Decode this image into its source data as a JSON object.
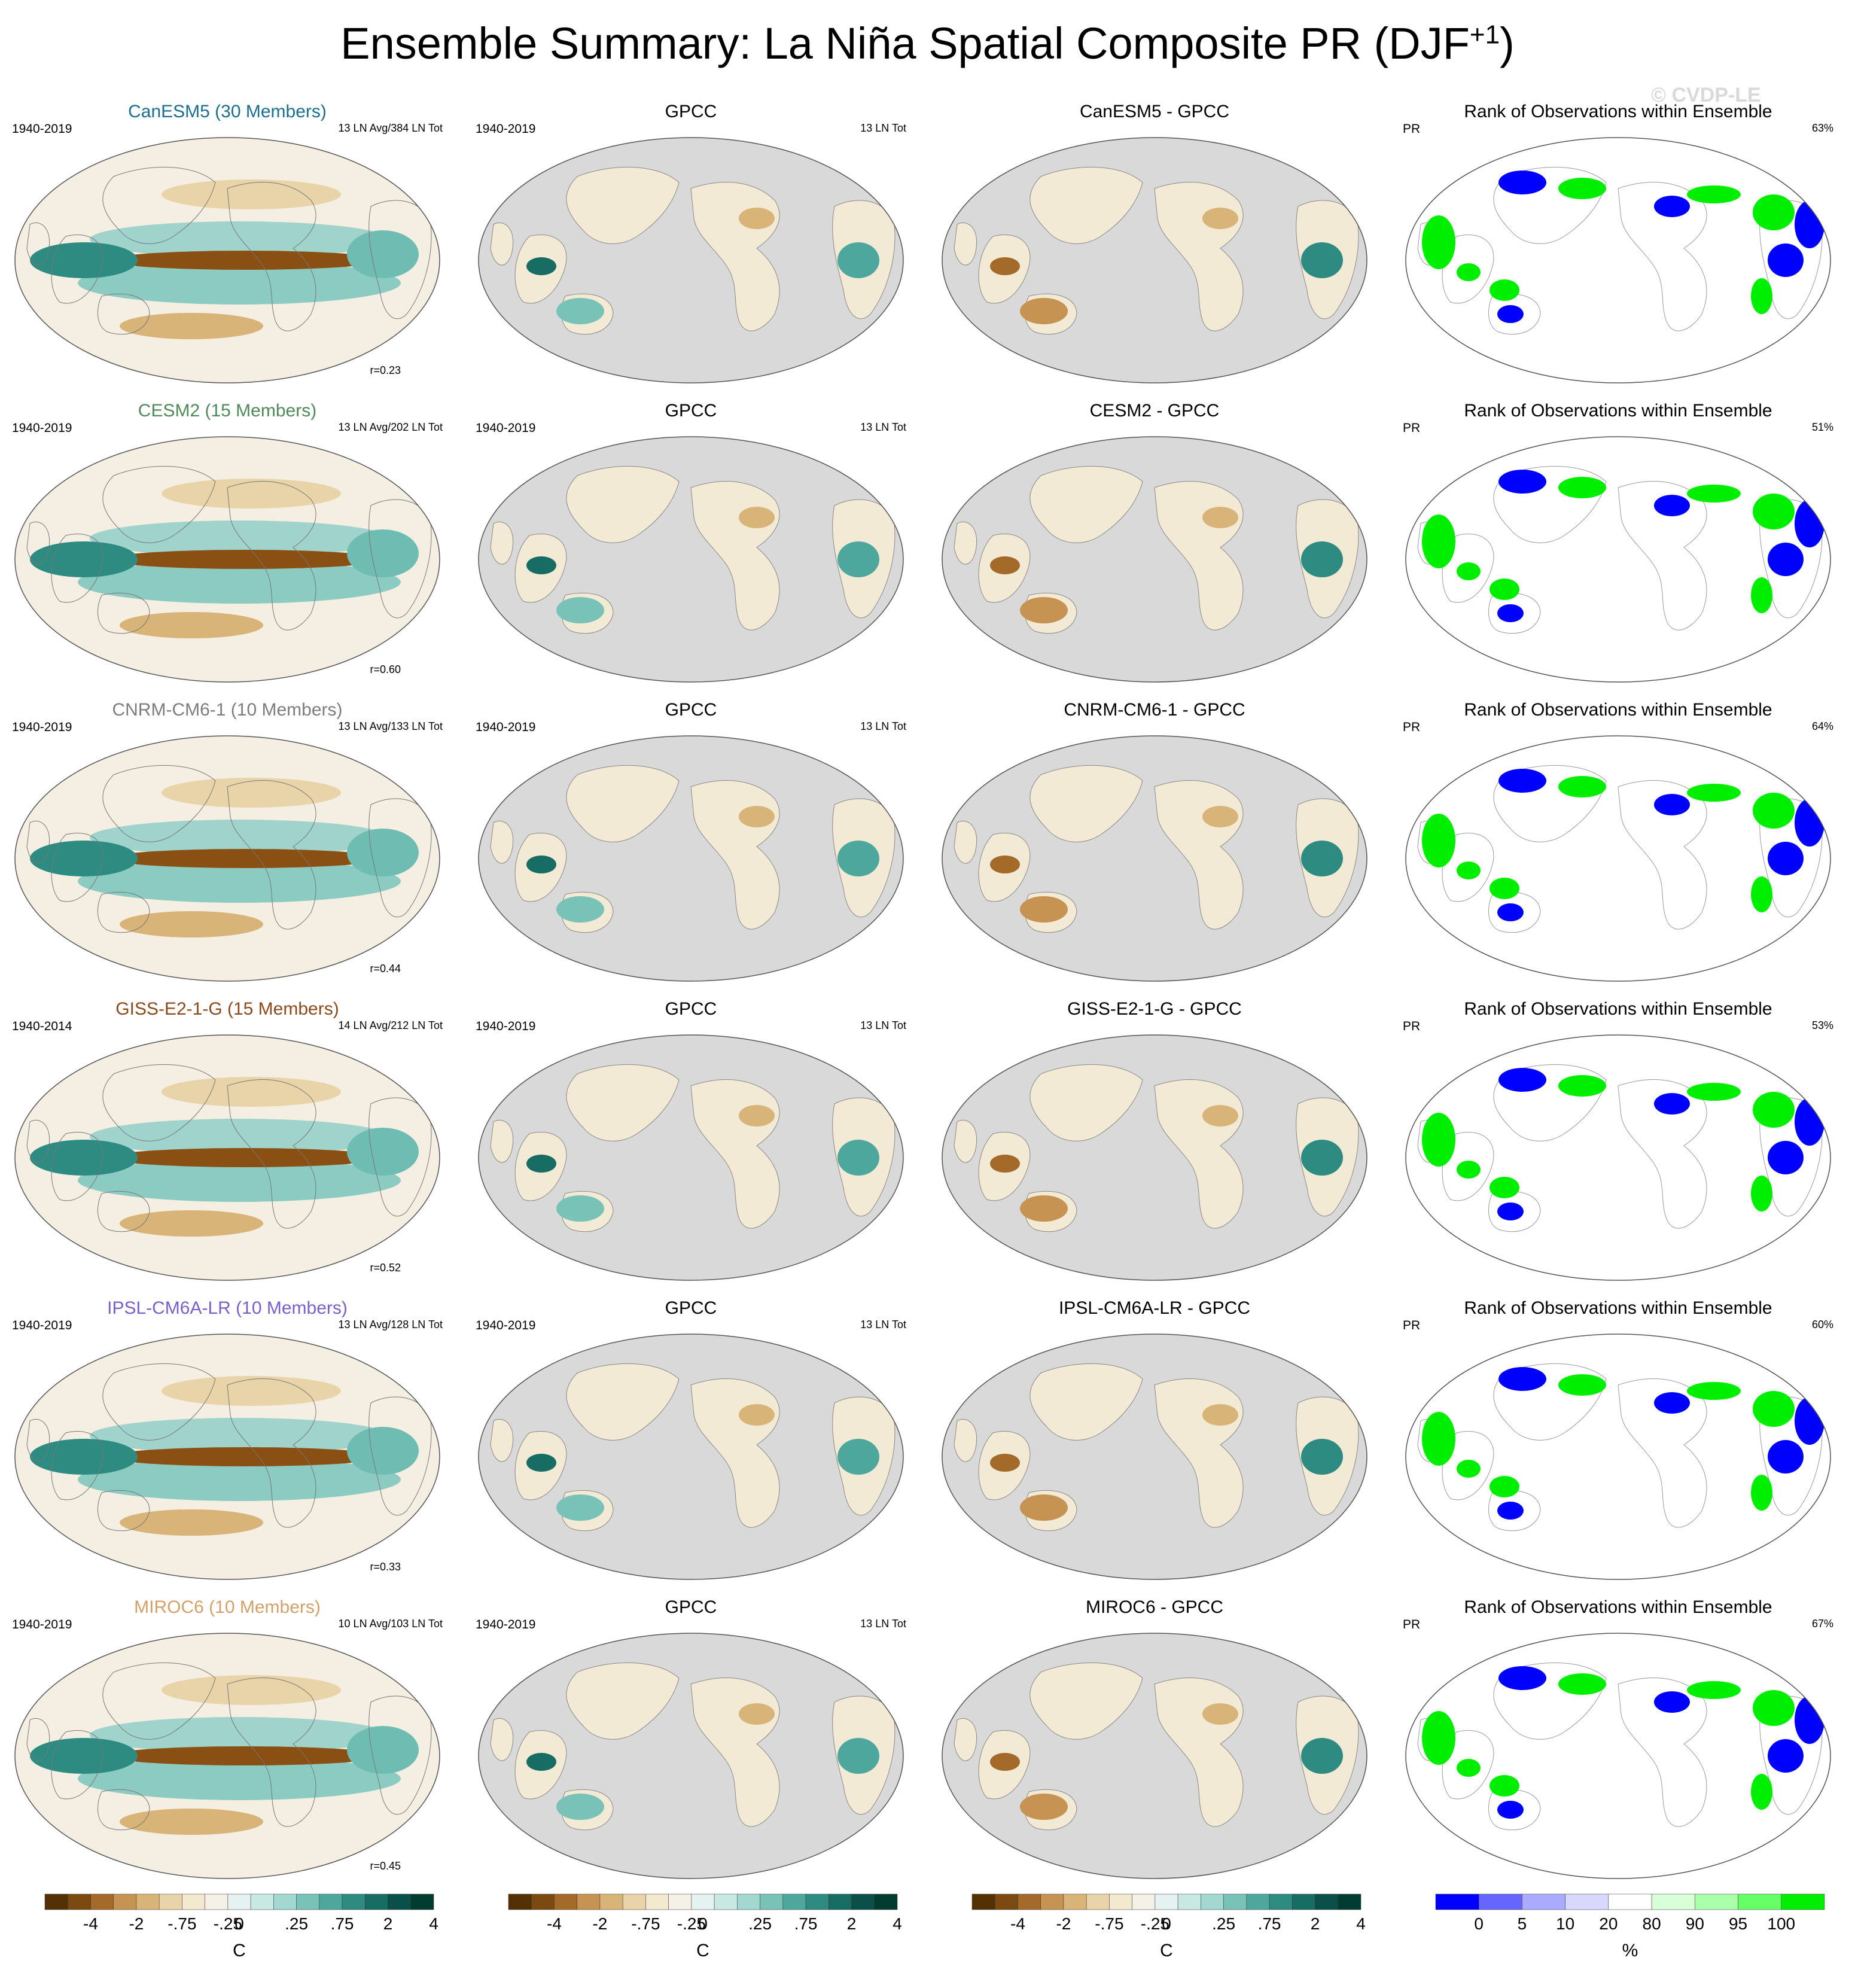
{
  "title": "Ensemble Summary: La Niña Spatial Composite PR (DJF",
  "title_sup": "+1",
  "title_close": ")",
  "watermark": "© CVDP-LE",
  "chart_data": {
    "type": "heatmap",
    "columns": [
      "model",
      "GPCC",
      "difference",
      "rank"
    ],
    "rows": [
      {
        "model": "CanESM5 (30 Members)",
        "model_color": "#1a6e8e",
        "period": "1940-2019",
        "count_text": "13 LN Avg/384 LN Tot",
        "r_text": "r=0.23",
        "gpcc_period": "1940-2019",
        "gpcc_title": "GPCC",
        "gpcc_count": "13 LN Tot",
        "diff_title": "CanESM5 - GPCC",
        "rank_title": "Rank of Observations within Ensemble",
        "rank_var": "PR",
        "rank_pct": "63%"
      },
      {
        "model": "CESM2 (15 Members)",
        "model_color": "#4f8a5a",
        "period": "1940-2019",
        "count_text": "13 LN Avg/202 LN Tot",
        "r_text": "r=0.60",
        "gpcc_period": "1940-2019",
        "gpcc_title": "GPCC",
        "gpcc_count": "13 LN Tot",
        "diff_title": "CESM2 - GPCC",
        "rank_title": "Rank of Observations within Ensemble",
        "rank_var": "PR",
        "rank_pct": "51%"
      },
      {
        "model": "CNRM-CM6-1 (10 Members)",
        "model_color": "#7d7d7d",
        "period": "1940-2019",
        "count_text": "13 LN Avg/133 LN Tot",
        "r_text": "r=0.44",
        "gpcc_period": "1940-2019",
        "gpcc_title": "GPCC",
        "gpcc_count": "13 LN Tot",
        "diff_title": "CNRM-CM6-1 - GPCC",
        "rank_title": "Rank of Observations within Ensemble",
        "rank_var": "PR",
        "rank_pct": "64%"
      },
      {
        "model": "GISS-E2-1-G (15 Members)",
        "model_color": "#8b4a1c",
        "period": "1940-2014",
        "count_text": "14 LN Avg/212 LN Tot",
        "r_text": "r=0.52",
        "gpcc_period": "1940-2019",
        "gpcc_title": "GPCC",
        "gpcc_count": "13 LN Tot",
        "diff_title": "GISS-E2-1-G - GPCC",
        "rank_title": "Rank of Observations within Ensemble",
        "rank_var": "PR",
        "rank_pct": "53%"
      },
      {
        "model": "IPSL-CM6A-LR (10 Members)",
        "model_color": "#7a5fc9",
        "period": "1940-2019",
        "count_text": "13 LN Avg/128 LN Tot",
        "r_text": "r=0.33",
        "gpcc_period": "1940-2019",
        "gpcc_title": "GPCC",
        "gpcc_count": "13 LN Tot",
        "diff_title": "IPSL-CM6A-LR - GPCC",
        "rank_title": "Rank of Observations within Ensemble",
        "rank_var": "PR",
        "rank_pct": "60%"
      },
      {
        "model": "MIROC6 (10 Members)",
        "model_color": "#d4a06a",
        "period": "1940-2019",
        "count_text": "10 LN Avg/103 LN Tot",
        "r_text": "r=0.45",
        "gpcc_period": "1940-2019",
        "gpcc_title": "GPCC",
        "gpcc_count": "13 LN Tot",
        "diff_title": "MIROC6 - GPCC",
        "rank_title": "Rank of Observations within Ensemble",
        "rank_var": "PR",
        "rank_pct": "67%"
      }
    ],
    "colorbar_pr": {
      "unit": "C",
      "tick_labels": [
        "-4",
        "-2",
        "-.75",
        "-.25",
        "0",
        ".25",
        ".75",
        "2",
        "4"
      ],
      "colors": [
        "#543005",
        "#7a4a10",
        "#a36a2a",
        "#c69352",
        "#d9b478",
        "#e8d4a8",
        "#f3e9cf",
        "#f5f1e6",
        "#e6f2f1",
        "#c8e8e4",
        "#a2d8d0",
        "#78c2b8",
        "#4ea79d",
        "#2e8b82",
        "#176d64",
        "#0a5048",
        "#003c30"
      ]
    },
    "colorbar_rank": {
      "unit": "%",
      "tick_labels": [
        "0",
        "5",
        "10",
        "20",
        "80",
        "90",
        "95",
        "100"
      ],
      "colors": [
        "#0000ff",
        "#6666ff",
        "#aaaaff",
        "#d8d8ff",
        "#ffffff",
        "#d8ffd8",
        "#aaffaa",
        "#66ff66",
        "#00ee00"
      ]
    }
  }
}
